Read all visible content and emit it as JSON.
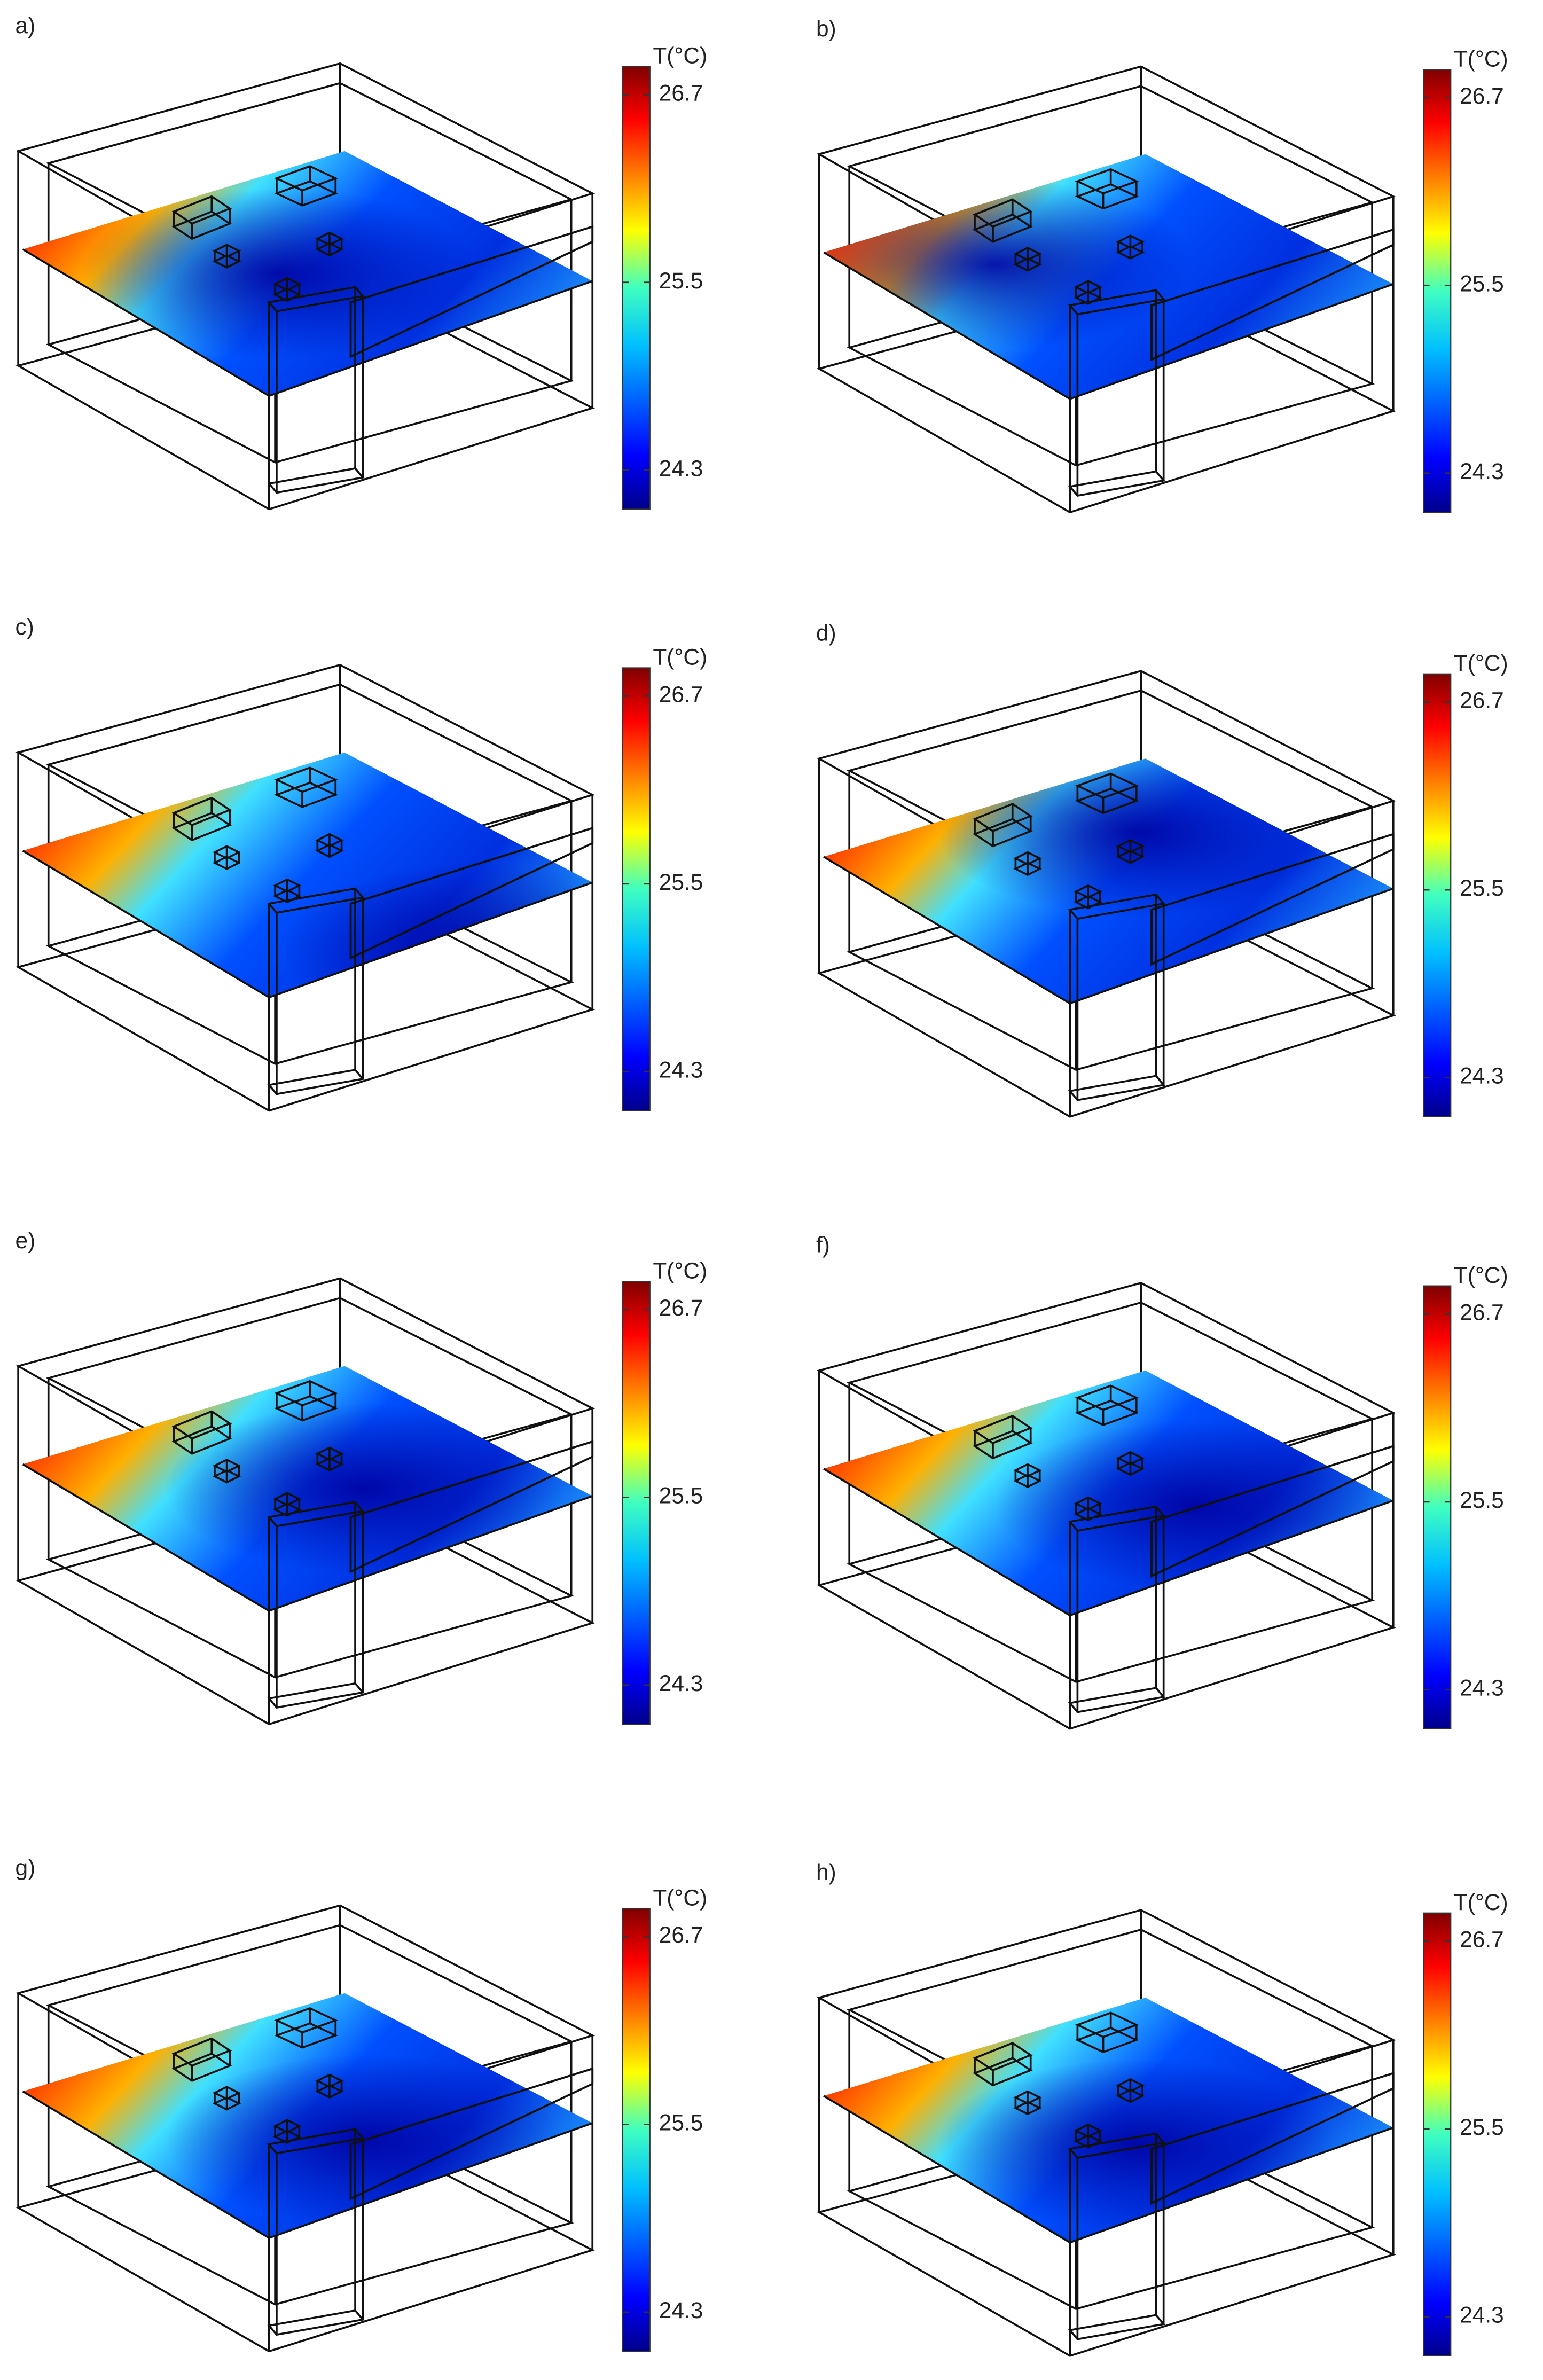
{
  "panels": [
    {
      "label": "a)",
      "colorbar": {
        "title": "T(°C)",
        "lim": [
          24.05,
          26.88
        ],
        "ticks": [
          26.7,
          25.5,
          24.3
        ]
      }
    },
    {
      "label": "b)",
      "colorbar": {
        "title": "T(°C)",
        "lim": [
          24.05,
          26.88
        ],
        "ticks": [
          26.7,
          25.5,
          24.3
        ]
      }
    },
    {
      "label": "c)",
      "colorbar": {
        "title": "T(°C)",
        "lim": [
          24.05,
          26.88
        ],
        "ticks": [
          26.7,
          25.5,
          24.3
        ]
      }
    },
    {
      "label": "d)",
      "colorbar": {
        "title": "T(°C)",
        "lim": [
          24.05,
          26.88
        ],
        "ticks": [
          26.7,
          25.5,
          24.3
        ]
      }
    },
    {
      "label": "e)",
      "colorbar": {
        "title": "T(°C)",
        "lim": [
          24.05,
          26.88
        ],
        "ticks": [
          26.7,
          25.5,
          24.3
        ]
      }
    },
    {
      "label": "f)",
      "colorbar": {
        "title": "T(°C)",
        "lim": [
          24.05,
          26.88
        ],
        "ticks": [
          26.7,
          25.5,
          24.3
        ]
      }
    },
    {
      "label": "g)",
      "colorbar": {
        "title": "T(°C)",
        "lim": [
          24.05,
          26.88
        ],
        "ticks": [
          26.7,
          25.5,
          24.3
        ]
      }
    },
    {
      "label": "h)",
      "colorbar": {
        "title": "T(°C)",
        "lim": [
          24.05,
          26.88
        ],
        "ticks": [
          26.7,
          25.5,
          24.3
        ]
      }
    }
  ]
}
